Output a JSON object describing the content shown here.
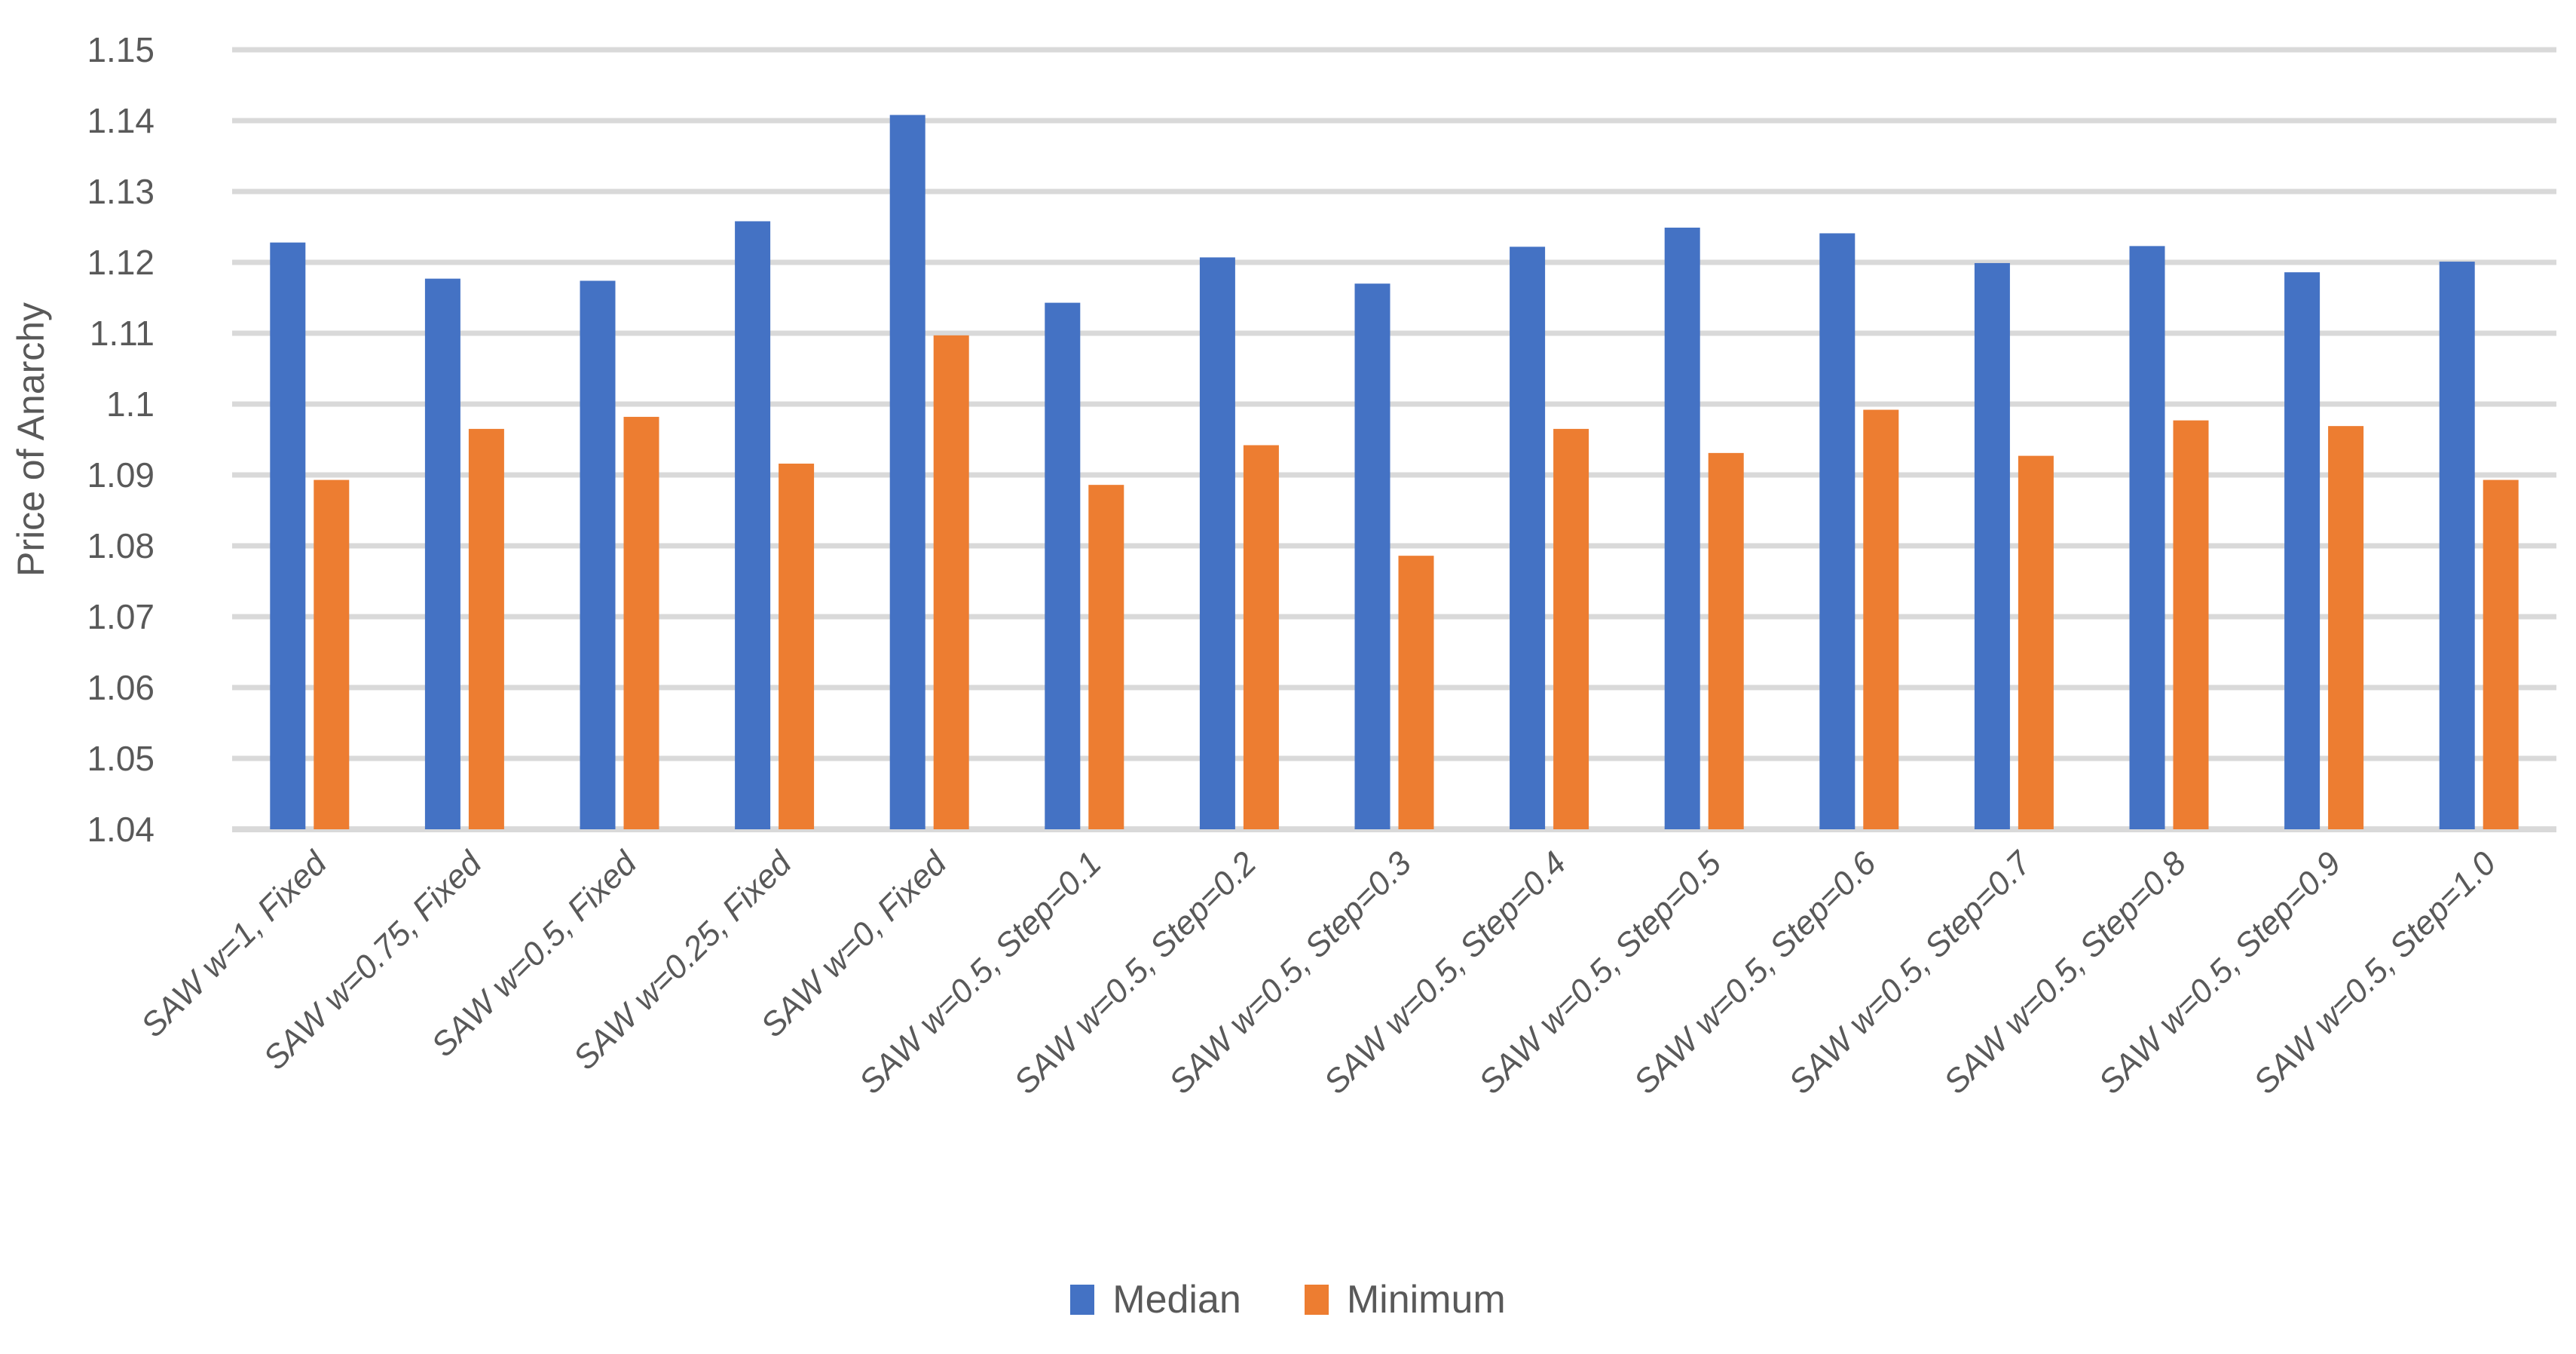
{
  "chart_data": {
    "type": "bar",
    "title": "",
    "xlabel": "",
    "ylabel": "Price of Anarchy",
    "ylim": [
      1.04,
      1.15
    ],
    "ytick_step": 0.01,
    "ytick_labels": [
      "1.15",
      "1.14",
      "1.13",
      "1.12",
      "1.11",
      "1.1",
      "1.09",
      "1.08",
      "1.07",
      "1.06",
      "1.05",
      "1.04"
    ],
    "grid": true,
    "legend_position": "bottom",
    "categories": [
      "SAW w=1, Fixed",
      "SAW w=0.75, Fixed",
      "SAW w=0.5, Fixed",
      "SAW w=0.25, Fixed",
      "SAW w=0, Fixed",
      "SAW w=0.5, Step=0.1",
      "SAW w=0.5, Step=0.2",
      "SAW w=0.5, Step=0.3",
      "SAW w=0.5, Step=0.4",
      "SAW w=0.5, Step=0.5",
      "SAW w=0.5, Step=0.6",
      "SAW w=0.5, Step=0.7",
      "SAW w=0.5, Step=0.8",
      "SAW w=0.5, Step=0.9",
      "SAW w=0.5, Step=1.0"
    ],
    "series": [
      {
        "name": "Median",
        "color": "#4472C4",
        "values": [
          1.1228,
          1.1177,
          1.1174,
          1.1258,
          1.1408,
          1.1143,
          1.1207,
          1.117,
          1.1222,
          1.1249,
          1.1241,
          1.1199,
          1.1223,
          1.1186,
          1.1201
        ]
      },
      {
        "name": "Minimum",
        "color": "#ED7D31",
        "values": [
          1.0893,
          1.0965,
          1.0982,
          1.0916,
          1.1097,
          1.0886,
          1.0942,
          1.0786,
          1.0965,
          1.0931,
          1.0992,
          1.0927,
          1.0977,
          1.0969,
          1.0893
        ]
      }
    ]
  },
  "colors": {
    "gridline": "#D9D9D9",
    "axis_text": "#595959",
    "background": "#FFFFFF"
  }
}
